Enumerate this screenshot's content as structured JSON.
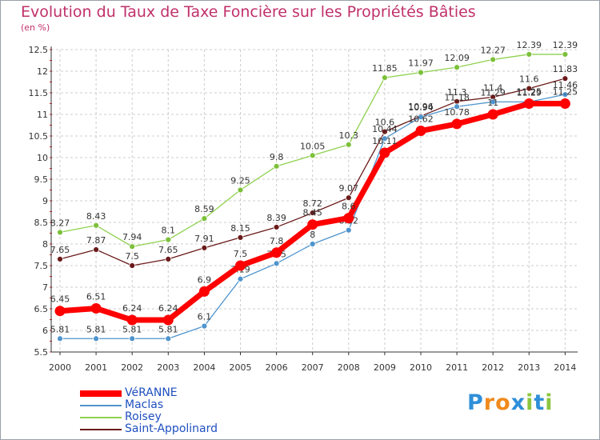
{
  "colors": {
    "title": "#c0306a",
    "legend_text": "#1f4fbf",
    "axis": "#333333",
    "grid": "#cccccc",
    "tick_red": "#e02020"
  },
  "header": {
    "title": "Evolution du Taux de Taxe Foncière sur les Propriétés Bâties",
    "subtitle": "(en %)"
  },
  "legend": {
    "items": [
      {
        "label": "VéRANNE",
        "color": "#ff0000",
        "thick": true
      },
      {
        "label": "Maclas",
        "color": "#4f94cd",
        "thick": false
      },
      {
        "label": "Roisey",
        "color": "#8fd14f",
        "thick": false
      },
      {
        "label": "Saint-Appolinard",
        "color": "#6b1a1a",
        "thick": false
      }
    ]
  },
  "logo": {
    "text": "Proxiti",
    "letters": [
      "P",
      "r",
      "o",
      "x",
      "i",
      "t",
      "i"
    ],
    "letter_colors": [
      "#2f8fd8",
      "#f08a1c",
      "#f08a1c",
      "#2f8fd8",
      "#8cc63f",
      "#2f8fd8",
      "#8cc63f"
    ]
  },
  "chart_data": {
    "type": "line",
    "title": "Evolution du Taux de Taxe Foncière sur les Propriétés Bâties",
    "ylabel": "(en %)",
    "xlabel": "",
    "ylim": [
      5.5,
      12.5
    ],
    "yticks": [
      5.5,
      6,
      6.5,
      7,
      7.5,
      8,
      8.5,
      9,
      9.5,
      10,
      10.5,
      11,
      11.5,
      12,
      12.5
    ],
    "grid": true,
    "categories": [
      "2000",
      "2001",
      "2002",
      "2003",
      "2004",
      "2005",
      "2006",
      "2007",
      "2008",
      "2009",
      "2010",
      "2011",
      "2012",
      "2013",
      "2014"
    ],
    "series": [
      {
        "name": "Roisey",
        "color": "#8fd14f",
        "marker": "#7cc03a",
        "width": 1.3,
        "r": 3.5,
        "values": [
          8.27,
          8.43,
          7.94,
          8.1,
          8.59,
          9.25,
          9.8,
          10.05,
          10.3,
          11.85,
          11.97,
          12.09,
          12.27,
          12.39,
          12.39
        ],
        "labels": [
          "8.27",
          "8.43",
          "7.94",
          "8.1",
          "8.59",
          "9.25",
          "9.8",
          "10.05",
          "10.3",
          "11.85",
          "11.97",
          "12.09",
          "12.27",
          "12.39",
          "12.39"
        ]
      },
      {
        "name": "Saint-Appolinard",
        "color": "#6b1a1a",
        "marker": "#6b1a1a",
        "width": 1.3,
        "r": 3.5,
        "values": [
          7.65,
          7.87,
          7.5,
          7.65,
          7.91,
          8.15,
          8.39,
          8.72,
          9.07,
          10.6,
          10.96,
          11.3,
          11.4,
          11.6,
          11.83
        ],
        "labels": [
          "7.65",
          "7.87",
          "7.5",
          "7.65",
          "7.91",
          "8.15",
          "8.39",
          "8.72",
          "9.07",
          "10.6",
          "10.96",
          "11.3",
          "11.4",
          "11.6",
          "11.83"
        ]
      },
      {
        "name": "Maclas",
        "color": "#4f94cd",
        "marker": "#4f94cd",
        "width": 1.3,
        "r": 3.5,
        "values": [
          5.81,
          5.81,
          5.81,
          5.81,
          6.1,
          7.19,
          7.55,
          8,
          8.32,
          10.44,
          10.94,
          11.18,
          11.29,
          11.29,
          11.46
        ],
        "labels": [
          "5.81",
          "5.81",
          "5.81",
          "5.81",
          "6.1",
          "7.19",
          "7.55",
          "8",
          "8.32",
          "10.44",
          "10.94",
          "11.18",
          "11.29",
          "11.29",
          "11.46"
        ]
      },
      {
        "name": "VéRANNE",
        "color": "#ff0000",
        "marker": "#ff0000",
        "width": 7,
        "r": 6.5,
        "values": [
          6.45,
          6.51,
          6.24,
          6.24,
          6.9,
          7.5,
          7.8,
          8.45,
          8.6,
          10.11,
          10.62,
          10.78,
          11,
          11.25,
          11.25
        ],
        "labels": [
          "6.45",
          "6.51",
          "6.24",
          "6.24",
          "6.9",
          "7.5",
          "7.8",
          "8.45",
          "8.6",
          "10.11",
          "10.62",
          "10.78",
          "11",
          "11.25",
          "11.25"
        ]
      }
    ]
  }
}
